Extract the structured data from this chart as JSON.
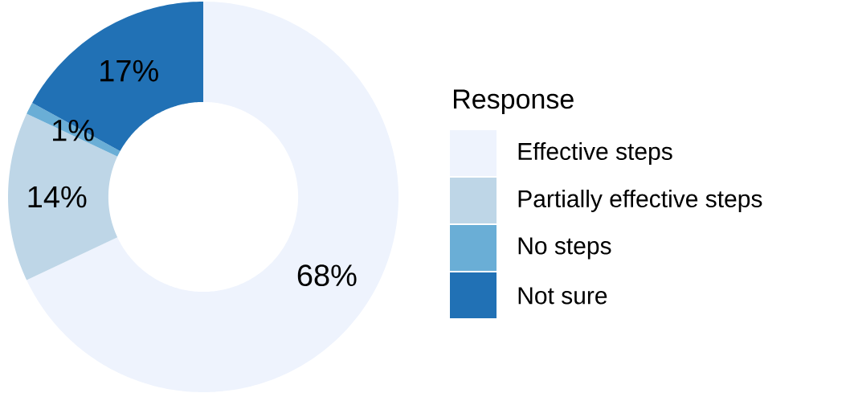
{
  "chart_data": {
    "type": "donut",
    "legend_title": "Response",
    "categories": [
      "Effective steps",
      "Partially effective steps",
      "No steps",
      "Not sure"
    ],
    "values": [
      68,
      14,
      1,
      17
    ],
    "colors": [
      "#eef3fd",
      "#bed6e7",
      "#6aaed6",
      "#2171b5"
    ],
    "value_labels": [
      "68%",
      "14%",
      "1%",
      "17%"
    ],
    "legend": "right"
  }
}
